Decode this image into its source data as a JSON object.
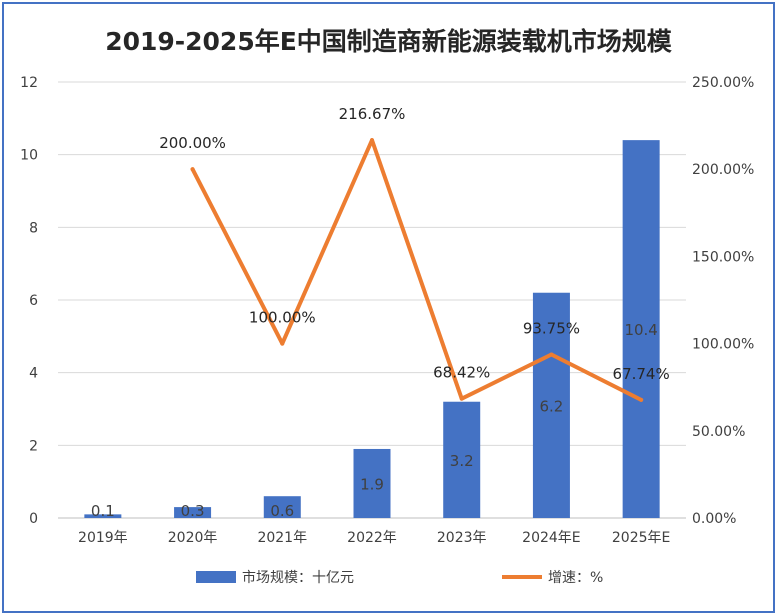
{
  "chart_data": {
    "type": "bar",
    "title": "2019-2025年E中国制造商新能源装载机市场规模",
    "categories": [
      "2019年",
      "2020年",
      "2021年",
      "2022年",
      "2023年",
      "2024年E",
      "2025年E"
    ],
    "series": [
      {
        "name": "市场规模：十亿元",
        "type": "bar",
        "axis": "left",
        "color": "#4472c4",
        "values": [
          0.1,
          0.3,
          0.6,
          1.9,
          3.2,
          6.2,
          10.4
        ],
        "labels": [
          "0.1",
          "0.3",
          "0.6",
          "1.9",
          "3.2",
          "6.2",
          "10.4"
        ]
      },
      {
        "name": "增速：%",
        "type": "line",
        "axis": "right",
        "color": "#ed7d31",
        "values": [
          null,
          200.0,
          100.0,
          216.67,
          68.42,
          93.75,
          67.74
        ],
        "labels": [
          "",
          "200.00%",
          "100.00%",
          "216.67%",
          "68.42%",
          "93.75%",
          "67.74%"
        ]
      }
    ],
    "y_left": {
      "ylim": [
        0,
        12
      ],
      "ticks": [
        "0",
        "2",
        "4",
        "6",
        "8",
        "10",
        "12"
      ]
    },
    "y_right": {
      "ylim": [
        0,
        250
      ],
      "ticks": [
        "0.00%",
        "50.00%",
        "100.00%",
        "150.00%",
        "200.00%",
        "250.00%"
      ]
    },
    "grid": true,
    "legend_placement": "bottom"
  }
}
